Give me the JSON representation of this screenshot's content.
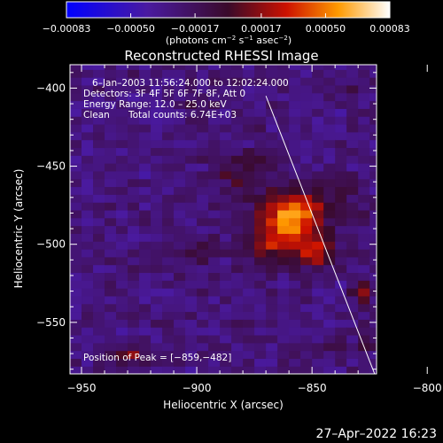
{
  "chart_data": {
    "type": "heatmap",
    "title": "Reconstructed RHESSI Image",
    "xlabel": "Heliocentric X (arcsec)",
    "ylabel": "Heliocentric Y (arcsec)",
    "xlim": [
      -955,
      -822
    ],
    "ylim": [
      -583,
      -385
    ],
    "x_ticks": [
      -950,
      -900,
      -850,
      -800
    ],
    "y_ticks": [
      -550,
      -500,
      -450,
      -400
    ],
    "x_tick_labels": [
      "−950",
      "−900",
      "−850",
      "−800"
    ],
    "y_tick_labels": [
      "−550",
      "−500",
      "−450",
      "−400"
    ],
    "colorbar": {
      "range": [
        -0.00083,
        0.00083
      ],
      "ticks": [
        -0.00083,
        -0.0005,
        -0.00017,
        0.00017,
        0.0005,
        0.00083
      ],
      "tick_labels": [
        "−0.00083",
        "−0.00050",
        "−0.00017",
        "0.00017",
        "0.00050",
        "0.00083"
      ],
      "unit_parts": [
        "(photons cm",
        "−2",
        " s",
        "−1",
        " asec",
        "−2",
        ")"
      ],
      "colormap": "blue-purple-red-yellow-white"
    },
    "annotations": {
      "time_range": "6–Jan–2003 11:56:24.000 to 12:02:24.000",
      "detectors": "Detectors: 3F 4F 5F 6F 7F 8F, Att 0",
      "energy": "Energy Range: 12.0 – 25.0 keV",
      "method_label": "Clean",
      "total_counts": "Total counts: 6.74E+03",
      "peak": "Position of Peak = [−859,−482]"
    },
    "peak": [
      -859,
      -482
    ],
    "sources": [
      {
        "x": -859,
        "y": -482,
        "amp": 0.00083,
        "sx": 9,
        "sy": 12
      },
      {
        "x": -848,
        "y": -505,
        "amp": 0.0005,
        "sx": 6,
        "sy": 6
      },
      {
        "x": -868,
        "y": -500,
        "amp": 0.00035,
        "sx": 9,
        "sy": 9
      },
      {
        "x": -882,
        "y": -457,
        "amp": 0.0002,
        "sx": 9,
        "sy": 10
      },
      {
        "x": -870,
        "y": -445,
        "amp": 0.00016,
        "sx": 6,
        "sy": 8
      },
      {
        "x": -840,
        "y": -472,
        "amp": 0.00016,
        "sx": 8,
        "sy": 10
      },
      {
        "x": -903,
        "y": -505,
        "amp": 0.00014,
        "sx": 8,
        "sy": 10
      },
      {
        "x": -930,
        "y": -570,
        "amp": 0.00042,
        "sx": 4,
        "sy": 4
      },
      {
        "x": -828,
        "y": -530,
        "amp": 0.0004,
        "sx": 3,
        "sy": 5
      },
      {
        "x": -826,
        "y": -560,
        "amp": 0.0003,
        "sx": 3,
        "sy": 6
      },
      {
        "x": -900,
        "y": -410,
        "amp": 0.0002,
        "sx": 4,
        "sy": 4
      },
      {
        "x": -835,
        "y": -400,
        "amp": 0.00018,
        "sx": 4,
        "sy": 4
      },
      {
        "x": -840,
        "y": -560,
        "amp": 0.00015,
        "sx": 4,
        "sy": 4
      }
    ],
    "limb_line": {
      "x": [
        -870,
        -817
      ],
      "y": [
        -405,
        -605
      ]
    }
  },
  "footer": {
    "timestamp": "27–Apr–2022 16:23"
  }
}
